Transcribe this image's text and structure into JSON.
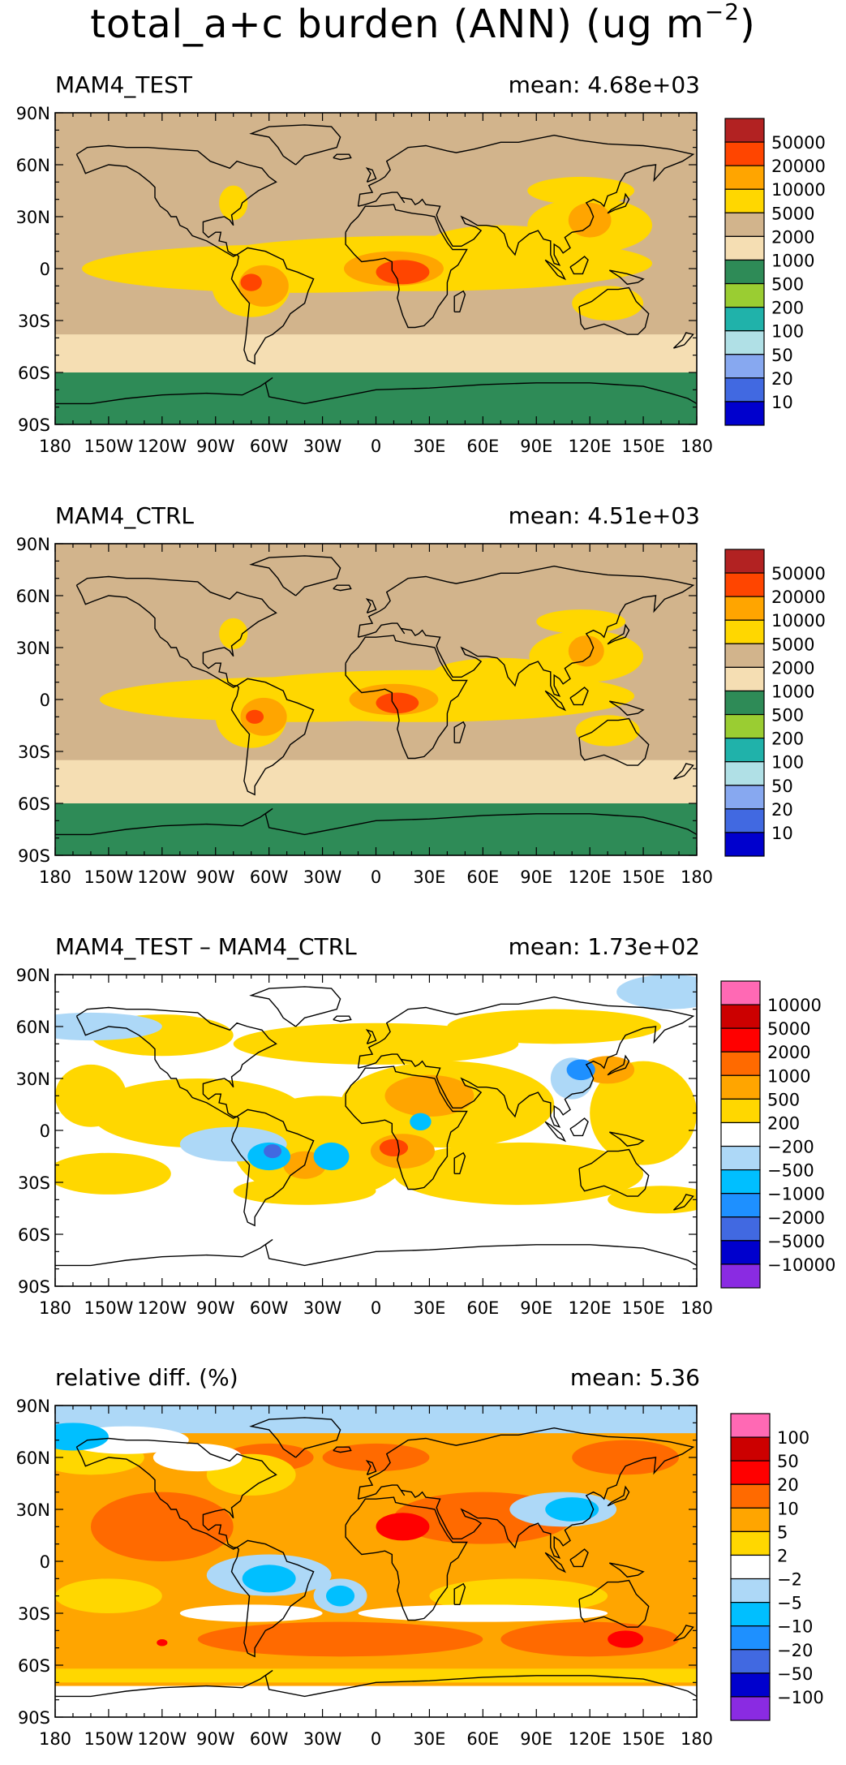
{
  "title": {
    "main": "total_a+c burden (ANN) (ug m",
    "exponent": "−2",
    "close": ")"
  },
  "x_tick_labels": [
    "180",
    "150W",
    "120W",
    "90W",
    "60W",
    "30W",
    "0",
    "30E",
    "60E",
    "90E",
    "120E",
    "150E",
    "180"
  ],
  "y_tick_labels": [
    "90N",
    "60N",
    "30N",
    "0",
    "30S",
    "60S",
    "90S"
  ],
  "panels": [
    {
      "id": "test",
      "left_label": "MAM4_TEST",
      "right_label": "mean: 4.68e+03",
      "colorbar": {
        "labels": [
          "50000",
          "20000",
          "10000",
          "5000",
          "2000",
          "1000",
          "500",
          "200",
          "100",
          "50",
          "20",
          "10"
        ],
        "colors": [
          "#b22222",
          "#ff4500",
          "#ffa500",
          "#ffd700",
          "#d2b48c",
          "#f5deb3",
          "#2e8b57",
          "#9acd32",
          "#20b2aa",
          "#b0e0e6",
          "#87a8f0",
          "#4169e1",
          "#0000cd"
        ]
      }
    },
    {
      "id": "ctrl",
      "left_label": "MAM4_CTRL",
      "right_label": "mean: 4.51e+03",
      "colorbar": {
        "labels": [
          "50000",
          "20000",
          "10000",
          "5000",
          "2000",
          "1000",
          "500",
          "200",
          "100",
          "50",
          "20",
          "10"
        ],
        "colors": [
          "#b22222",
          "#ff4500",
          "#ffa500",
          "#ffd700",
          "#d2b48c",
          "#f5deb3",
          "#2e8b57",
          "#9acd32",
          "#20b2aa",
          "#b0e0e6",
          "#87a8f0",
          "#4169e1",
          "#0000cd"
        ]
      }
    },
    {
      "id": "diff",
      "left_label": "MAM4_TEST – MAM4_CTRL",
      "right_label": "mean: 1.73e+02",
      "colorbar": {
        "labels": [
          "10000",
          "5000",
          "2000",
          "1000",
          "500",
          "200",
          "−200",
          "−500",
          "−1000",
          "−2000",
          "−5000",
          "−10000"
        ],
        "colors": [
          "#ff69b4",
          "#cc0000",
          "#ff0000",
          "#ff6a00",
          "#ffa500",
          "#ffd700",
          "#ffffff",
          "#add8f7",
          "#00bfff",
          "#1e90ff",
          "#4169e1",
          "#0000cd",
          "#8a2be2"
        ]
      }
    },
    {
      "id": "rel",
      "left_label": "relative diff. (%)",
      "right_label": "mean:   5.36",
      "colorbar": {
        "labels": [
          "100",
          "50",
          "20",
          "10",
          "5",
          "2",
          "−2",
          "−5",
          "−10",
          "−20",
          "−50",
          "−100"
        ],
        "colors": [
          "#ff69b4",
          "#cc0000",
          "#ff0000",
          "#ff6a00",
          "#ffa500",
          "#ffd700",
          "#ffffff",
          "#add8f7",
          "#00bfff",
          "#1e90ff",
          "#4169e1",
          "#0000cd",
          "#8a2be2"
        ]
      }
    }
  ]
}
